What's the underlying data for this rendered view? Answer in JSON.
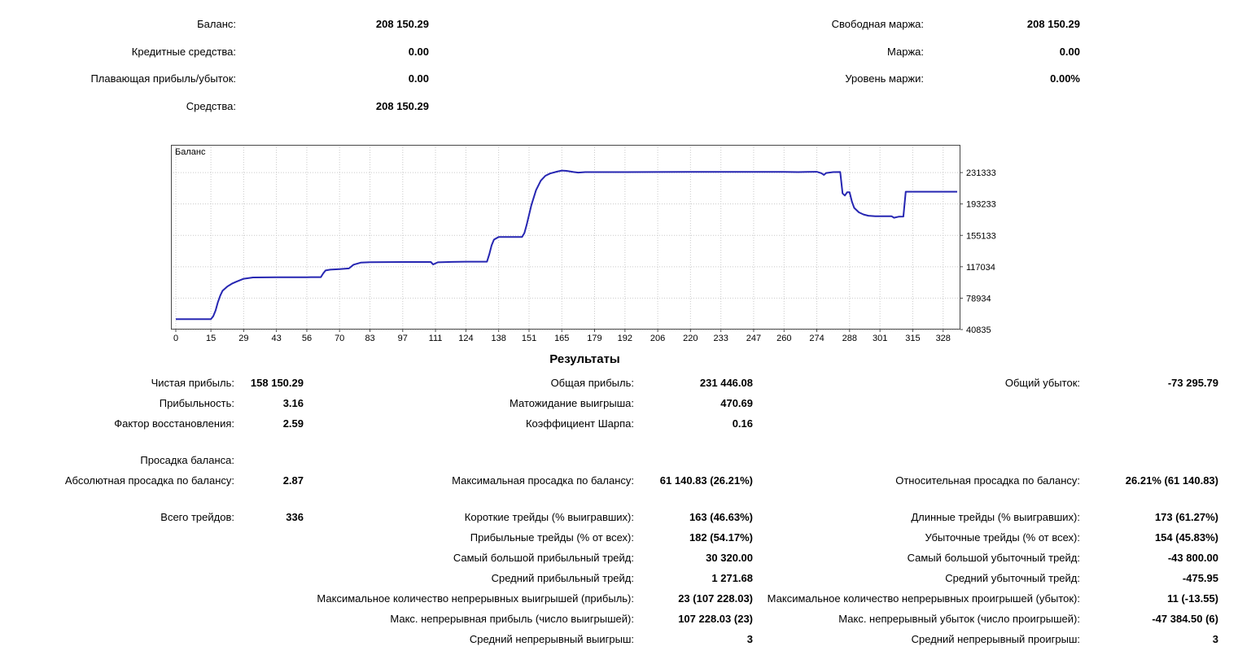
{
  "account": {
    "left_rows": [
      {
        "label": "Баланс:",
        "value": "208 150.29"
      },
      {
        "label": "Кредитные средства:",
        "value": "0.00"
      },
      {
        "label": "Плавающая прибыль/убыток:",
        "value": "0.00"
      },
      {
        "label": "Средства:",
        "value": "208 150.29"
      }
    ],
    "right_rows": [
      {
        "label": "Свободная маржа:",
        "value": "208 150.29"
      },
      {
        "label": "Маржа:",
        "value": "0.00"
      },
      {
        "label": "Уровень маржи:",
        "value": "0.00%"
      }
    ]
  },
  "chart_data": {
    "type": "line",
    "title": "Баланс",
    "xlabel": "",
    "ylabel": "",
    "x_ticks": [
      0,
      15,
      29,
      43,
      56,
      70,
      83,
      97,
      111,
      124,
      138,
      151,
      165,
      179,
      192,
      206,
      220,
      233,
      247,
      260,
      274,
      288,
      301,
      315,
      328
    ],
    "y_ticks": [
      231333,
      193233,
      155133,
      117034,
      78934,
      40835
    ],
    "xlim": [
      0,
      334
    ],
    "ylim": [
      40835,
      265000
    ],
    "grid": true,
    "legend_position": "none",
    "line_color": "#2626b2",
    "series": [
      {
        "name": "Баланс",
        "points": [
          [
            0,
            53500
          ],
          [
            15,
            53500
          ],
          [
            16,
            57000
          ],
          [
            17,
            64000
          ],
          [
            18,
            74000
          ],
          [
            19,
            82000
          ],
          [
            20,
            88000
          ],
          [
            22,
            93000
          ],
          [
            24,
            96500
          ],
          [
            26,
            99000
          ],
          [
            29,
            102500
          ],
          [
            33,
            104000
          ],
          [
            43,
            104300
          ],
          [
            56,
            104300
          ],
          [
            62,
            104400
          ],
          [
            63,
            109000
          ],
          [
            64,
            112500
          ],
          [
            66,
            113500
          ],
          [
            70,
            114200
          ],
          [
            74,
            115000
          ],
          [
            76,
            119500
          ],
          [
            79,
            122000
          ],
          [
            83,
            122600
          ],
          [
            97,
            122800
          ],
          [
            109,
            122800
          ],
          [
            110,
            119800
          ],
          [
            112,
            122400
          ],
          [
            118,
            122900
          ],
          [
            124,
            123200
          ],
          [
            133,
            123200
          ],
          [
            134,
            132000
          ],
          [
            135,
            143000
          ],
          [
            136,
            150000
          ],
          [
            138,
            153200
          ],
          [
            148,
            153200
          ],
          [
            149,
            158000
          ],
          [
            150,
            168000
          ],
          [
            152,
            192000
          ],
          [
            154,
            210000
          ],
          [
            156,
            221500
          ],
          [
            158,
            227500
          ],
          [
            160,
            230200
          ],
          [
            163,
            232500
          ],
          [
            165,
            233800
          ],
          [
            167,
            233400
          ],
          [
            170,
            232000
          ],
          [
            172,
            231300
          ],
          [
            175,
            231900
          ],
          [
            192,
            231900
          ],
          [
            206,
            232000
          ],
          [
            220,
            232100
          ],
          [
            233,
            232100
          ],
          [
            247,
            232200
          ],
          [
            260,
            232200
          ],
          [
            266,
            231900
          ],
          [
            270,
            232200
          ],
          [
            274,
            232300
          ],
          [
            276,
            230500
          ],
          [
            277,
            228500
          ],
          [
            278,
            230800
          ],
          [
            281,
            231900
          ],
          [
            284,
            232000
          ],
          [
            285,
            206000
          ],
          [
            286,
            203500
          ],
          [
            287,
            207500
          ],
          [
            288,
            207500
          ],
          [
            289,
            196000
          ],
          [
            290,
            188500
          ],
          [
            292,
            183000
          ],
          [
            294,
            180500
          ],
          [
            296,
            179000
          ],
          [
            299,
            178300
          ],
          [
            303,
            178300
          ],
          [
            306,
            178300
          ],
          [
            307,
            176500
          ],
          [
            309,
            177800
          ],
          [
            311,
            178000
          ],
          [
            312,
            208150
          ],
          [
            334,
            208150
          ]
        ]
      }
    ]
  },
  "results": {
    "title": "Результаты",
    "rows": [
      {
        "gap": false,
        "c": [
          {
            "l": "Чистая прибыль:",
            "v": "158 150.29"
          },
          {
            "l": "Общая прибыль:",
            "v": "231 446.08"
          },
          {
            "l": "Общий убыток:",
            "v": "-73 295.79"
          }
        ]
      },
      {
        "gap": false,
        "c": [
          {
            "l": "Прибыльность:",
            "v": "3.16"
          },
          {
            "l": "Матожидание выигрыша:",
            "v": "470.69"
          },
          null
        ]
      },
      {
        "gap": false,
        "c": [
          {
            "l": "Фактор восстановления:",
            "v": "2.59"
          },
          {
            "l": "Коэффициент Шарпа:",
            "v": "0.16"
          },
          null
        ]
      },
      {
        "gap": true,
        "c": [
          {
            "l": "Просадка баланса:",
            "v": ""
          },
          null,
          null
        ]
      },
      {
        "gap": false,
        "c": [
          {
            "l": "Абсолютная просадка по балансу:",
            "v": "2.87"
          },
          {
            "l": "Максимальная просадка по балансу:",
            "v": "61 140.83 (26.21%)"
          },
          {
            "l": "Относительная просадка по балансу:",
            "v": "26.21% (61 140.83)"
          }
        ]
      },
      {
        "gap": true,
        "c": [
          {
            "l": "Всего трейдов:",
            "v": "336"
          },
          {
            "l": "Короткие трейды (% выигравших):",
            "v": "163 (46.63%)"
          },
          {
            "l": "Длинные трейды (% выигравших):",
            "v": "173 (61.27%)"
          }
        ]
      },
      {
        "gap": false,
        "c": [
          null,
          {
            "l": "Прибыльные трейды (% от всех):",
            "v": "182 (54.17%)"
          },
          {
            "l": "Убыточные трейды (% от всех):",
            "v": "154 (45.83%)"
          }
        ]
      },
      {
        "gap": false,
        "c": [
          null,
          {
            "l": "Самый большой прибыльный трейд:",
            "v": "30 320.00"
          },
          {
            "l": "Самый большой убыточный трейд:",
            "v": "-43 800.00"
          }
        ]
      },
      {
        "gap": false,
        "c": [
          null,
          {
            "l": "Средний прибыльный трейд:",
            "v": "1 271.68"
          },
          {
            "l": "Средний убыточный трейд:",
            "v": "-475.95"
          }
        ]
      },
      {
        "gap": false,
        "c": [
          null,
          {
            "l": "Максимальное количество непрерывных выигрышей (прибыль):",
            "v": "23 (107 228.03)"
          },
          {
            "l": "Максимальное количество непрерывных проигрышей (убыток):",
            "v": "11 (-13.55)"
          }
        ]
      },
      {
        "gap": false,
        "c": [
          null,
          {
            "l": "Макс. непрерывная прибыль (число выигрышей):",
            "v": "107 228.03 (23)"
          },
          {
            "l": "Макс. непрерывный убыток (число проигрышей):",
            "v": "-47 384.50 (6)"
          }
        ]
      },
      {
        "gap": false,
        "c": [
          null,
          {
            "l": "Средний непрерывный выигрыш:",
            "v": "3"
          },
          {
            "l": "Средний непрерывный проигрыш:",
            "v": "3"
          }
        ]
      }
    ]
  }
}
